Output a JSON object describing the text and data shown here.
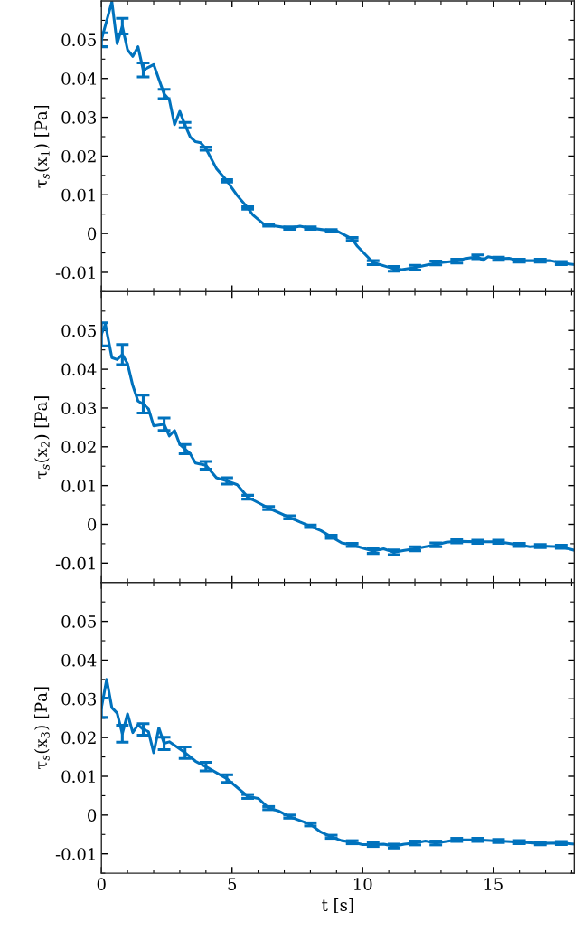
{
  "chart_data": [
    {
      "type": "line",
      "ylabel": "τ$_{s}$(x$_{1}$) [Pa]",
      "xlim": [
        0,
        18.1
      ],
      "xticks": [
        0,
        5,
        10,
        15
      ],
      "ylim": [
        -0.015,
        0.06
      ],
      "yticks": [
        -0.01,
        0,
        0.01,
        0.02,
        0.03,
        0.04,
        0.05
      ],
      "tick_labels": "y",
      "series": [
        {
          "color": "#0072bd",
          "x": [
            0,
            0.4,
            0.6,
            0.8,
            1.0,
            1.2,
            1.4,
            1.6,
            2.0,
            2.4,
            2.6,
            2.8,
            3.0,
            3.2,
            3.4,
            3.6,
            3.8,
            4.0,
            4.4,
            4.8,
            5.2,
            5.6,
            5.8,
            6.2,
            6.4,
            7.2,
            7.6,
            8.0,
            8.8,
            9.0,
            9.6,
            9.8,
            10.4,
            11.2,
            11.5,
            12.0,
            12.8,
            13.6,
            13.9,
            14.4,
            14.6,
            14.8,
            15.2,
            15.6,
            16.0,
            16.8,
            17.2,
            17.6,
            18.1
          ],
          "values": [
            0.05,
            0.0598,
            0.049,
            0.0535,
            0.0474,
            0.0457,
            0.0482,
            0.0422,
            0.0436,
            0.036,
            0.0345,
            0.0281,
            0.0315,
            0.028,
            0.0249,
            0.0237,
            0.0234,
            0.0219,
            0.0168,
            0.0136,
            0.0098,
            0.0066,
            0.0048,
            0.0025,
            0.0022,
            0.0014,
            0.0019,
            0.0014,
            0.0007,
            0.0007,
            -0.0014,
            -0.0033,
            -0.0075,
            -0.0091,
            -0.0093,
            -0.0088,
            -0.0076,
            -0.0071,
            -0.0065,
            -0.006,
            -0.0069,
            -0.006,
            -0.0065,
            -0.0064,
            -0.007,
            -0.007,
            -0.007,
            -0.0076,
            -0.008
          ],
          "errors": [
            0.0018,
            null,
            null,
            0.002,
            null,
            null,
            null,
            0.0018,
            null,
            0.0012,
            null,
            null,
            null,
            0.0007,
            null,
            null,
            null,
            0.0004,
            null,
            0.0003,
            null,
            0.0003,
            null,
            null,
            0.0003,
            0.0003,
            null,
            0.0003,
            0.0003,
            null,
            0.0004,
            null,
            0.0005,
            0.0006,
            null,
            0.0006,
            0.0005,
            0.0005,
            null,
            0.0005,
            null,
            null,
            0.0004,
            null,
            0.0004,
            0.0004,
            null,
            0.0004,
            null
          ]
        }
      ]
    },
    {
      "type": "line",
      "ylabel": "τ$_{s}$(x$_{2}$) [Pa]",
      "xlim": [
        0,
        18.1
      ],
      "xticks": [
        0,
        5,
        10,
        15
      ],
      "ylim": [
        -0.015,
        0.06
      ],
      "yticks": [
        -0.01,
        0,
        0.01,
        0.02,
        0.03,
        0.04,
        0.05
      ],
      "tick_labels": "y",
      "series": [
        {
          "color": "#0072bd",
          "x": [
            0,
            0.15,
            0.4,
            0.6,
            0.8,
            1.0,
            1.2,
            1.4,
            1.6,
            1.8,
            2.0,
            2.2,
            2.4,
            2.6,
            2.8,
            3.0,
            3.2,
            3.4,
            3.6,
            4.0,
            4.4,
            4.8,
            5.2,
            5.6,
            6.0,
            6.4,
            7.2,
            7.6,
            8.0,
            8.4,
            8.8,
            9.2,
            9.6,
            10.4,
            10.8,
            11.2,
            11.6,
            12.0,
            12.4,
            12.8,
            13.2,
            13.6,
            14.4,
            15.2,
            16.0,
            16.4,
            16.8,
            17.6,
            18.1
          ],
          "values": [
            0.049,
            0.0516,
            0.043,
            0.0425,
            0.0438,
            0.0414,
            0.0358,
            0.0318,
            0.031,
            0.0298,
            0.0254,
            0.0256,
            0.0258,
            0.0228,
            0.0242,
            0.0206,
            0.0194,
            0.0182,
            0.0158,
            0.0152,
            0.012,
            0.0112,
            0.0102,
            0.007,
            0.0056,
            0.0042,
            0.0018,
            0.0006,
            -0.0005,
            -0.0016,
            -0.0032,
            -0.0048,
            -0.0053,
            -0.0069,
            -0.0063,
            -0.0072,
            -0.0067,
            -0.0063,
            -0.0058,
            -0.0053,
            -0.0046,
            -0.0044,
            -0.0045,
            -0.0045,
            -0.0053,
            -0.0058,
            -0.0056,
            -0.0058,
            -0.0067
          ],
          "errors": [
            0.003,
            null,
            null,
            null,
            0.0026,
            null,
            null,
            null,
            0.0023,
            null,
            null,
            null,
            0.0016,
            null,
            null,
            null,
            0.0012,
            null,
            null,
            0.001,
            null,
            0.0008,
            null,
            0.0005,
            null,
            0.0004,
            0.0004,
            null,
            0.0003,
            null,
            0.0004,
            null,
            0.0004,
            0.0006,
            null,
            0.0006,
            null,
            0.0005,
            null,
            0.0005,
            null,
            0.0004,
            0.0004,
            0.0004,
            0.0004,
            null,
            0.0004,
            0.0004,
            null
          ]
        }
      ]
    },
    {
      "type": "line",
      "xlabel": "t [s]",
      "ylabel": "τ$_{s}$(x$_{3}$) [Pa]",
      "xlim": [
        0,
        18.1
      ],
      "xticks": [
        0,
        5,
        10,
        15
      ],
      "ylim": [
        -0.015,
        0.06
      ],
      "yticks": [
        -0.01,
        0,
        0.01,
        0.02,
        0.03,
        0.04,
        0.05
      ],
      "series": [
        {
          "color": "#0072bd",
          "x": [
            0,
            0.2,
            0.4,
            0.6,
            0.8,
            1.0,
            1.2,
            1.4,
            1.6,
            1.8,
            2.0,
            2.2,
            2.4,
            2.6,
            3.2,
            3.6,
            4.0,
            4.8,
            5.6,
            6.0,
            6.4,
            6.8,
            7.2,
            8.0,
            8.4,
            8.8,
            9.2,
            9.6,
            10.0,
            10.4,
            10.8,
            11.2,
            11.6,
            12.0,
            12.4,
            12.8,
            13.6,
            14.4,
            15.2,
            16.0,
            16.8,
            17.6,
            18.1
          ],
          "values": [
            0.0277,
            0.035,
            0.0277,
            0.0263,
            0.021,
            0.0261,
            0.0213,
            0.0233,
            0.0221,
            0.0215,
            0.0161,
            0.0225,
            0.0185,
            0.0189,
            0.0161,
            0.0139,
            0.0125,
            0.0094,
            0.0048,
            0.0043,
            0.0018,
            0.001,
            -0.0004,
            -0.0024,
            -0.0044,
            -0.0056,
            -0.0066,
            -0.007,
            -0.0076,
            -0.0076,
            -0.0075,
            -0.008,
            -0.0075,
            -0.0072,
            -0.0067,
            -0.0072,
            -0.0064,
            -0.0064,
            -0.0067,
            -0.007,
            -0.0073,
            -0.0072,
            -0.0075
          ],
          "errors": [
            0.0025,
            null,
            null,
            null,
            0.0022,
            null,
            null,
            null,
            0.0015,
            null,
            null,
            null,
            0.0016,
            null,
            0.0015,
            null,
            0.0011,
            0.001,
            0.0005,
            null,
            0.0004,
            null,
            0.0004,
            0.0004,
            null,
            0.0004,
            null,
            0.0004,
            null,
            0.0005,
            null,
            0.0005,
            null,
            0.0005,
            null,
            0.0005,
            0.0004,
            0.0004,
            0.0004,
            0.0004,
            0.0004,
            0.0004,
            null
          ]
        }
      ]
    }
  ]
}
